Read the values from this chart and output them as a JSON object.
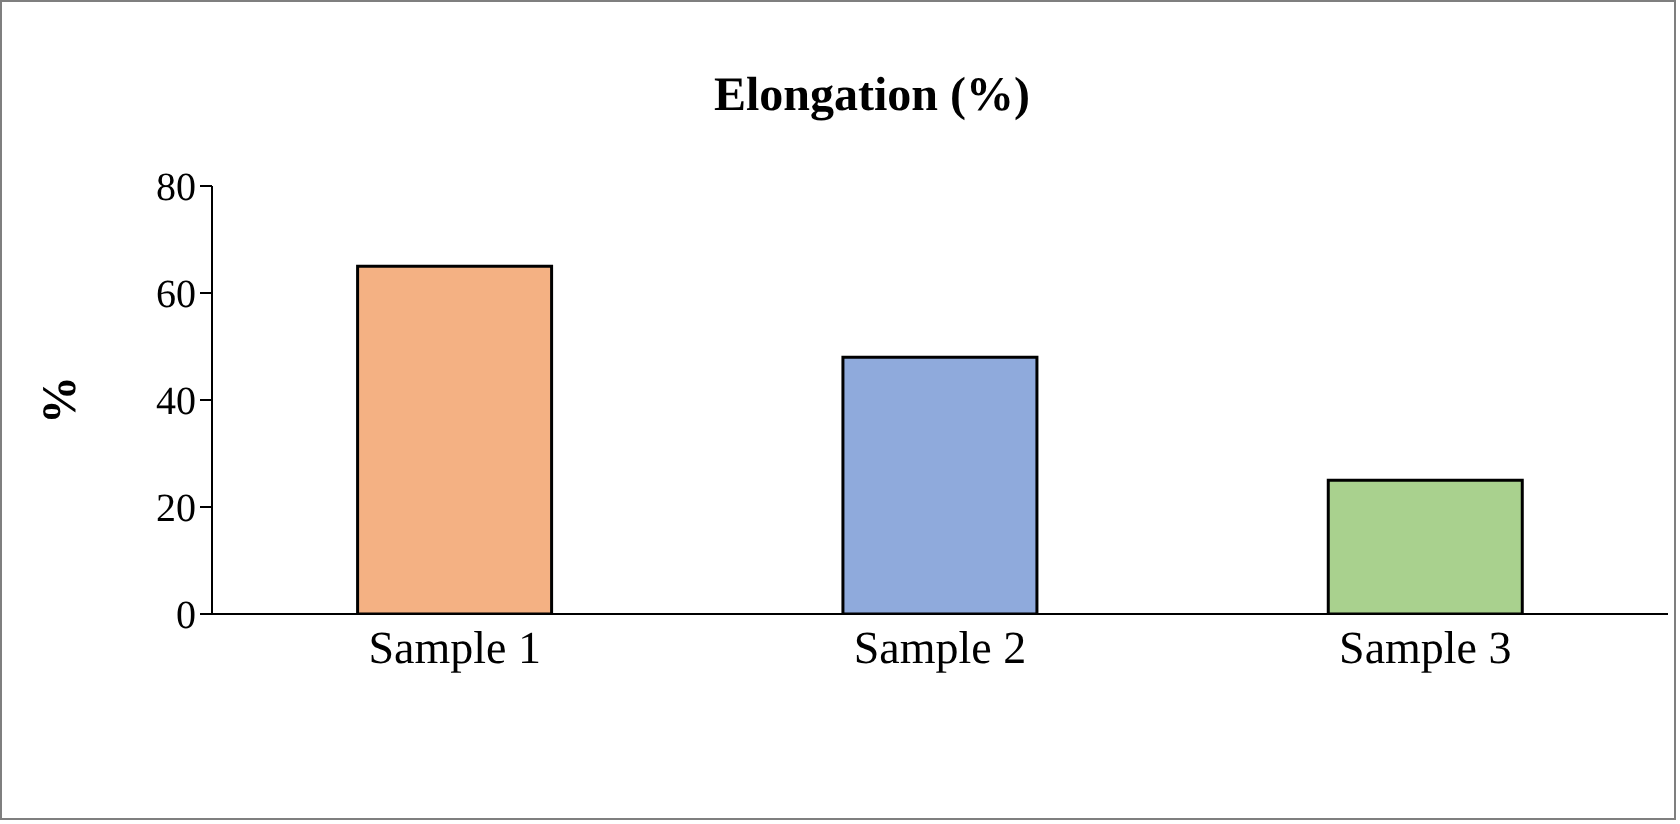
{
  "chart_data": {
    "type": "bar",
    "title": "Elongation (%)",
    "ylabel": "%",
    "categories": [
      "Sample 1",
      "Sample 2",
      "Sample 3"
    ],
    "values": [
      65,
      48,
      25
    ],
    "colors": [
      "#f4b183",
      "#8faadc",
      "#a9d18e"
    ],
    "ylim": [
      0,
      80
    ],
    "yticks": [
      0,
      20,
      40,
      60,
      80
    ],
    "grid": false,
    "legend": false
  }
}
